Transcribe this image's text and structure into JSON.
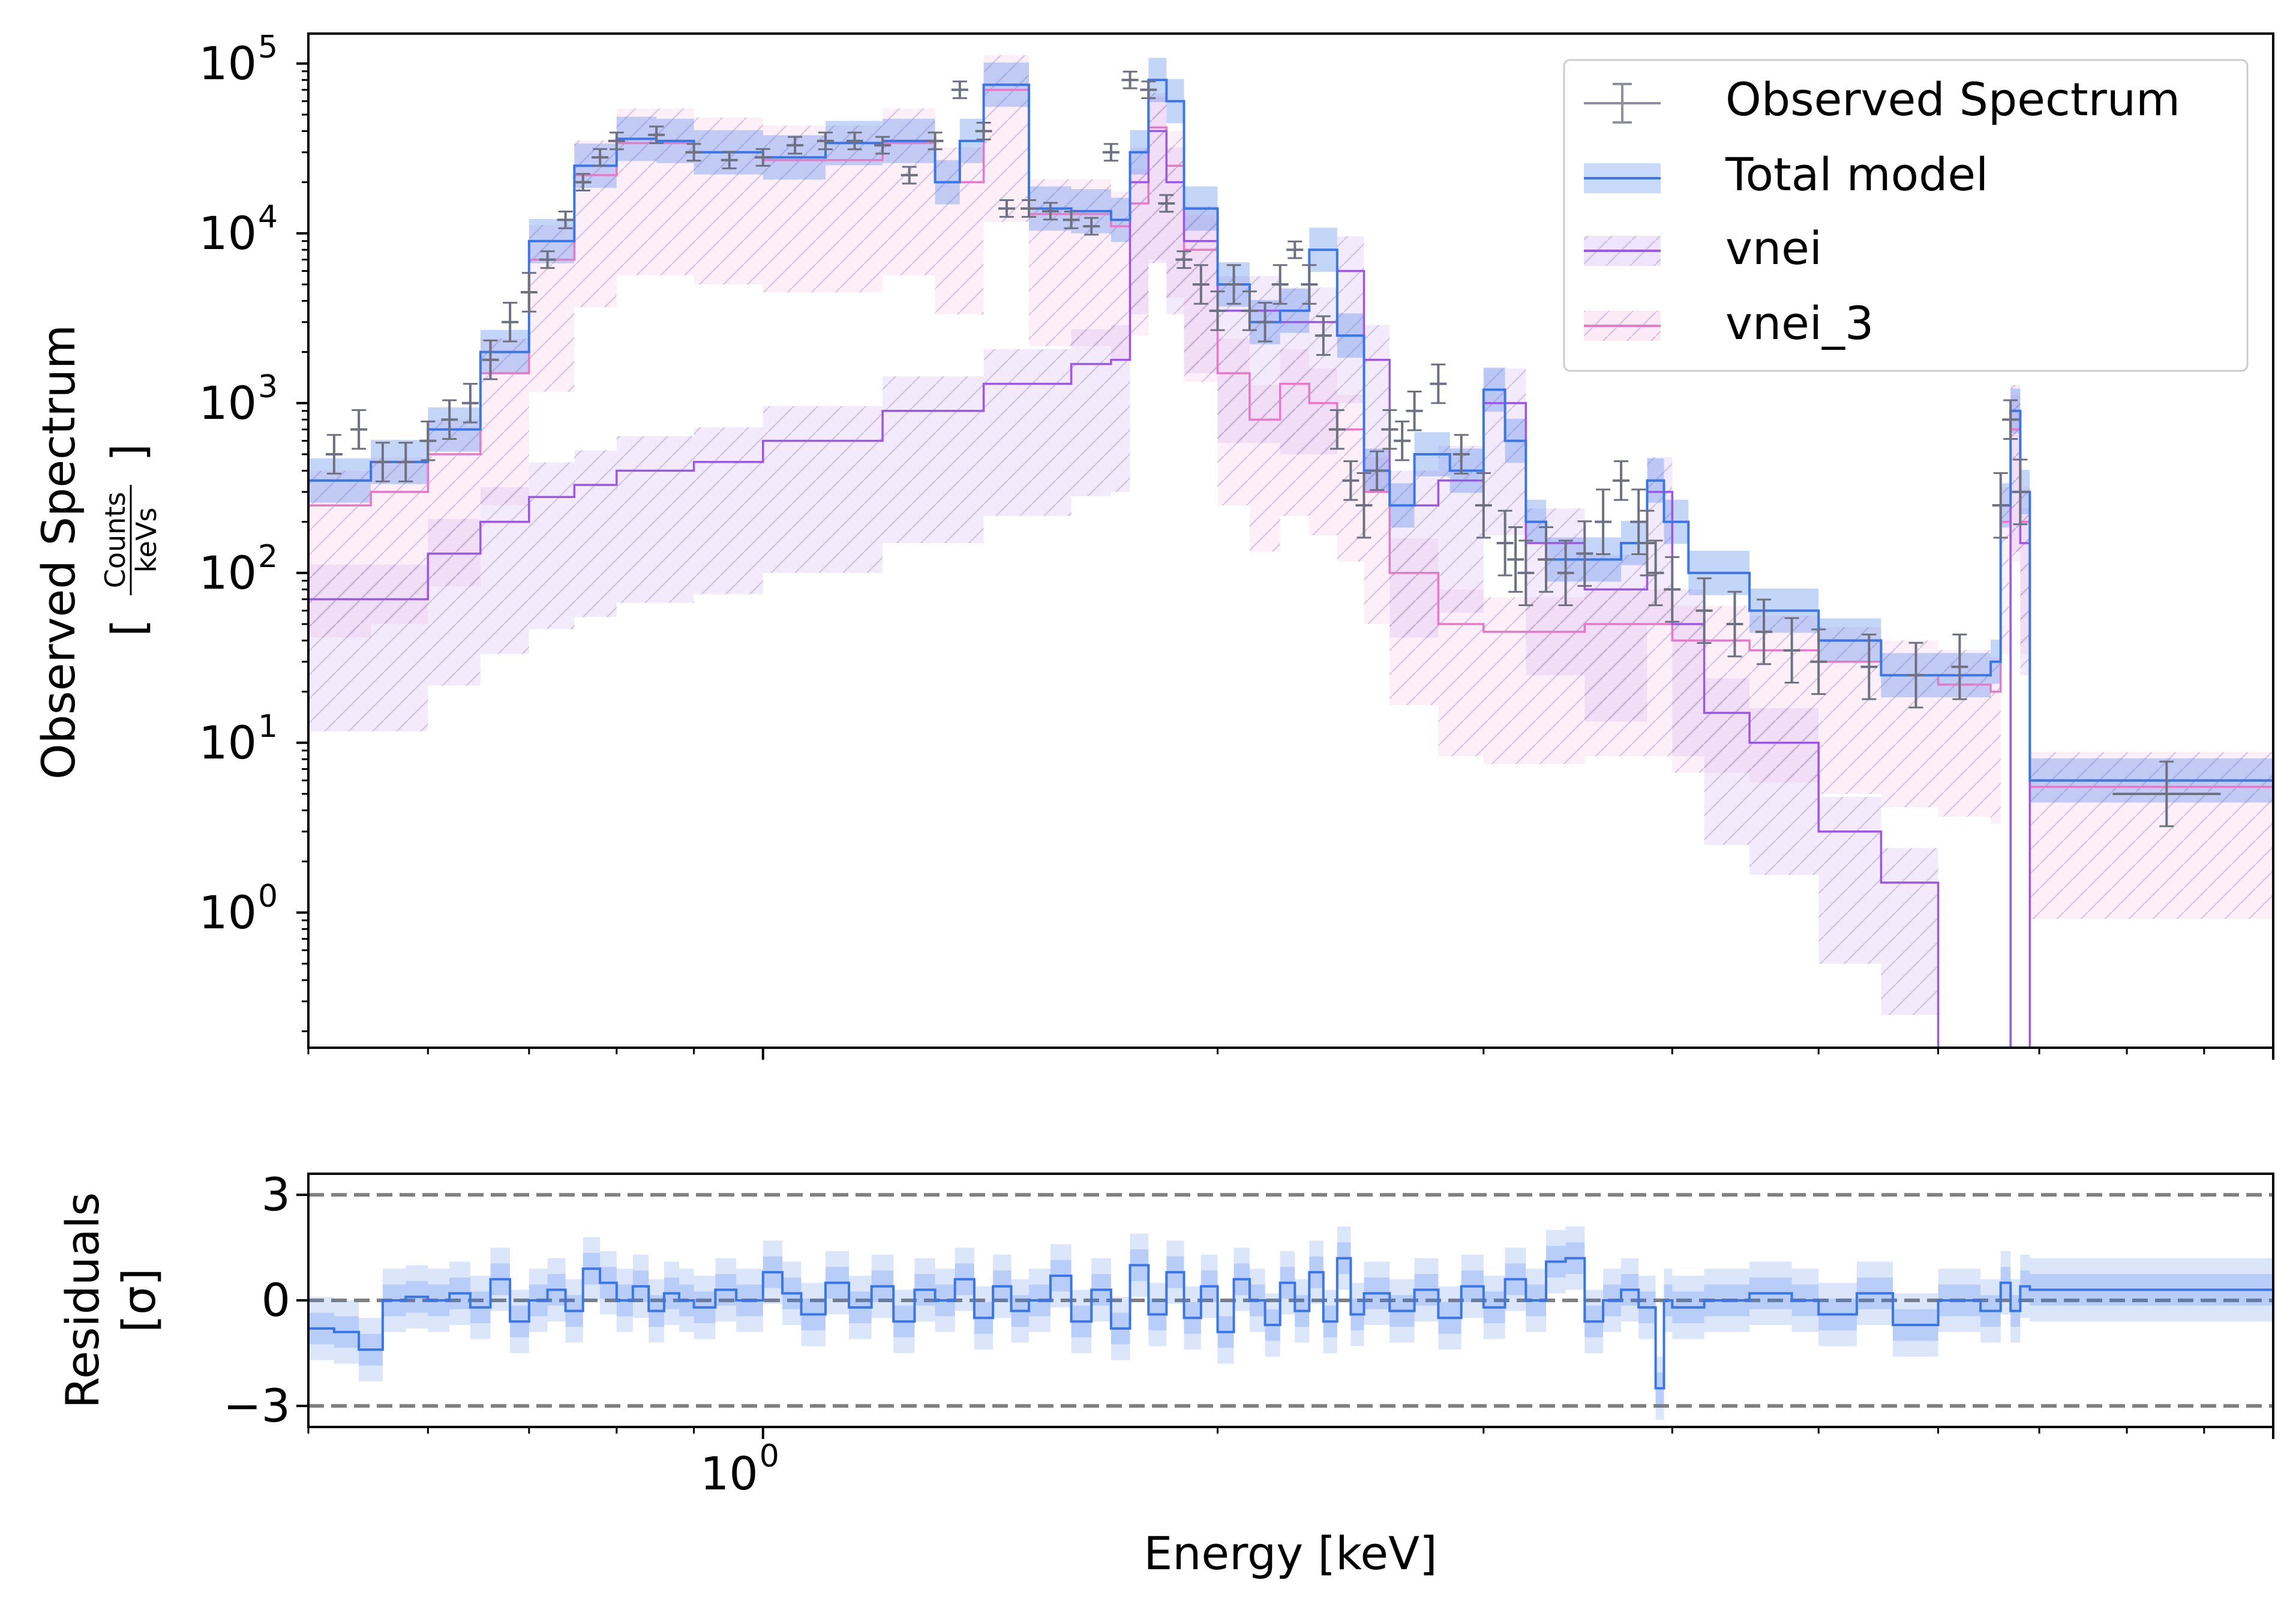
{
  "chart_data": [
    {
      "type": "line",
      "panel": "spectrum",
      "ylabel": "Observed Spectrum",
      "ylabel_units": {
        "open": "[",
        "numerator": "Counts",
        "denominator": "keVs",
        "close": "]"
      },
      "xscale": "log",
      "yscale": "log",
      "xlim": [
        0.5,
        10.0
      ],
      "ylim": [
        0.16,
        150000
      ],
      "yticks": [
        {
          "value": 1,
          "base": "10",
          "exp": "0"
        },
        {
          "value": 10,
          "base": "10",
          "exp": "1"
        },
        {
          "value": 100,
          "base": "10",
          "exp": "2"
        },
        {
          "value": 1000,
          "base": "10",
          "exp": "3"
        },
        {
          "value": 10000,
          "base": "10",
          "exp": "4"
        },
        {
          "value": 100000,
          "base": "10",
          "exp": "5"
        }
      ],
      "legend": {
        "placement": "top-right",
        "entries": [
          {
            "label": "Observed Spectrum",
            "kind": "errorbar",
            "color": "#6e7181"
          },
          {
            "label": "Total model",
            "kind": "line-band",
            "color": "#3a76e8"
          },
          {
            "label": "vnei",
            "kind": "line-band-hatch",
            "color": "#9b58e6"
          },
          {
            "label": "vnei_3",
            "kind": "line-band-hatch",
            "color": "#e67ac6"
          }
        ]
      },
      "series": [
        {
          "name": "Total model",
          "color": "#3a76e8",
          "x": [
            0.5,
            0.55,
            0.6,
            0.65,
            0.7,
            0.75,
            0.8,
            0.85,
            0.9,
            1.0,
            1.1,
            1.2,
            1.3,
            1.35,
            1.4,
            1.5,
            1.6,
            1.7,
            1.75,
            1.8,
            1.85,
            1.9,
            2.0,
            2.1,
            2.2,
            2.3,
            2.4,
            2.5,
            2.6,
            2.7,
            2.85,
            3.0,
            3.1,
            3.2,
            3.3,
            3.5,
            3.7,
            3.85,
            3.95,
            4.1,
            4.5,
            5.0,
            5.5,
            6.0,
            6.5,
            6.6,
            6.7,
            6.8,
            6.9,
            10.0
          ],
          "y": [
            350,
            450,
            700,
            2000,
            9000,
            25000,
            36000,
            35000,
            30000,
            28000,
            34000,
            35000,
            20000,
            35000,
            75000,
            14000,
            13500,
            12000,
            30000,
            80000,
            60000,
            14000,
            5000,
            3000,
            3500,
            8000,
            2500,
            400,
            250,
            500,
            400,
            1200,
            600,
            200,
            120,
            120,
            150,
            350,
            200,
            100,
            60,
            40,
            25,
            25,
            30,
            250,
            900,
            300,
            6,
            6
          ]
        },
        {
          "name": "vnei",
          "color": "#9b58e6",
          "x": [
            0.5,
            0.55,
            0.6,
            0.65,
            0.7,
            0.75,
            0.8,
            0.9,
            1.0,
            1.2,
            1.4,
            1.6,
            1.7,
            1.75,
            1.8,
            1.85,
            1.9,
            2.0,
            2.2,
            2.4,
            2.5,
            2.6,
            2.8,
            3.0,
            3.2,
            3.5,
            3.85,
            4.0,
            4.2,
            4.5,
            5.0,
            5.5,
            6.0,
            6.5,
            6.7,
            6.8,
            6.9,
            10.0
          ],
          "y": [
            70,
            70,
            130,
            200,
            280,
            330,
            400,
            450,
            600,
            900,
            1300,
            1700,
            1800,
            20000,
            40000,
            20000,
            9000,
            3500,
            3000,
            6000,
            1800,
            250,
            350,
            1000,
            150,
            80,
            300,
            50,
            15,
            10,
            3,
            1.5,
            0.1,
            0.1,
            800,
            150,
            0.1,
            0.1
          ]
        },
        {
          "name": "vnei_3",
          "color": "#e67ac6",
          "x": [
            0.5,
            0.55,
            0.6,
            0.65,
            0.7,
            0.75,
            0.8,
            0.9,
            1.0,
            1.2,
            1.3,
            1.4,
            1.5,
            1.6,
            1.7,
            1.75,
            1.8,
            1.85,
            1.9,
            2.0,
            2.1,
            2.2,
            2.3,
            2.4,
            2.5,
            2.6,
            2.8,
            3.0,
            3.5,
            4.0,
            4.5,
            5.0,
            5.5,
            6.0,
            6.5,
            6.6,
            6.7,
            6.8,
            6.9,
            10.0
          ],
          "y": [
            250,
            300,
            500,
            1500,
            7000,
            22000,
            34000,
            30000,
            27000,
            34000,
            20000,
            70000,
            13000,
            13000,
            11000,
            15000,
            42000,
            25000,
            8000,
            1500,
            800,
            1300,
            1000,
            700,
            300,
            100,
            50,
            45,
            50,
            40,
            35,
            30,
            25,
            22,
            20,
            200,
            700,
            200,
            5.5,
            5.5
          ]
        }
      ],
      "observed": {
        "name": "Observed Spectrum",
        "color": "#6e7181",
        "x": [
          0.52,
          0.54,
          0.56,
          0.58,
          0.6,
          0.62,
          0.64,
          0.66,
          0.68,
          0.7,
          0.72,
          0.74,
          0.76,
          0.78,
          0.8,
          0.85,
          0.9,
          0.95,
          1.0,
          1.05,
          1.1,
          1.15,
          1.2,
          1.25,
          1.3,
          1.35,
          1.4,
          1.45,
          1.5,
          1.55,
          1.6,
          1.65,
          1.7,
          1.75,
          1.8,
          1.85,
          1.9,
          1.95,
          2.0,
          2.05,
          2.1,
          2.15,
          2.2,
          2.25,
          2.3,
          2.35,
          2.4,
          2.45,
          2.5,
          2.55,
          2.6,
          2.65,
          2.7,
          2.8,
          2.9,
          3.0,
          3.1,
          3.15,
          3.2,
          3.3,
          3.4,
          3.5,
          3.6,
          3.7,
          3.8,
          3.85,
          3.9,
          4.0,
          4.2,
          4.4,
          4.6,
          4.8,
          5.0,
          5.4,
          5.8,
          6.2,
          6.6,
          6.7,
          6.8,
          8.5
        ],
        "y": [
          500,
          700,
          450,
          450,
          600,
          800,
          1000,
          1800,
          3000,
          4500,
          7000,
          12000,
          20000,
          28000,
          35000,
          38000,
          30000,
          27000,
          28000,
          33000,
          35000,
          35000,
          33000,
          22000,
          35000,
          70000,
          40000,
          14000,
          14000,
          13500,
          12000,
          11000,
          30000,
          80000,
          70000,
          15000,
          7000,
          5000,
          3500,
          5000,
          3500,
          3000,
          5000,
          8000,
          5000,
          2500,
          700,
          350,
          250,
          400,
          700,
          600,
          900,
          1300,
          500,
          250,
          150,
          120,
          100,
          120,
          100,
          130,
          200,
          350,
          200,
          150,
          100,
          80,
          60,
          50,
          45,
          35,
          30,
          28,
          25,
          28,
          250,
          800,
          300,
          5
        ]
      }
    },
    {
      "type": "line",
      "panel": "residuals",
      "xlabel": "Energy [keV]",
      "ylabel": "Residuals",
      "ylabel_units": "[σ]",
      "xscale": "log",
      "xlim": [
        0.5,
        10.0
      ],
      "ylim": [
        -3.6,
        3.6
      ],
      "yticks": [
        {
          "value": 3,
          "label": "3"
        },
        {
          "value": 0,
          "label": "0"
        },
        {
          "value": -3,
          "label": "−3"
        }
      ],
      "xticks": [
        {
          "value": 1,
          "base": "10",
          "exp": "0"
        }
      ],
      "reference_lines": [
        3,
        0,
        -3
      ],
      "series": [
        {
          "name": "Total model",
          "color": "#3a76e8",
          "x": [
            0.5,
            0.52,
            0.54,
            0.56,
            0.58,
            0.6,
            0.62,
            0.64,
            0.66,
            0.68,
            0.7,
            0.72,
            0.74,
            0.76,
            0.78,
            0.8,
            0.82,
            0.84,
            0.86,
            0.88,
            0.9,
            0.93,
            0.96,
            1.0,
            1.03,
            1.06,
            1.1,
            1.14,
            1.18,
            1.22,
            1.26,
            1.3,
            1.34,
            1.38,
            1.42,
            1.46,
            1.5,
            1.55,
            1.6,
            1.65,
            1.7,
            1.75,
            1.8,
            1.85,
            1.9,
            1.95,
            2.0,
            2.05,
            2.1,
            2.15,
            2.2,
            2.25,
            2.3,
            2.35,
            2.4,
            2.45,
            2.5,
            2.6,
            2.7,
            2.8,
            2.9,
            3.0,
            3.1,
            3.2,
            3.3,
            3.4,
            3.5,
            3.6,
            3.7,
            3.8,
            3.9,
            3.95,
            4.0,
            4.2,
            4.5,
            4.8,
            5.0,
            5.3,
            5.6,
            6.0,
            6.4,
            6.6,
            6.7,
            6.8,
            6.9,
            10.0
          ],
          "y": [
            -0.8,
            -0.9,
            -1.4,
            0.0,
            0.1,
            0.0,
            0.2,
            -0.2,
            0.6,
            -0.6,
            0.0,
            0.3,
            -0.3,
            0.9,
            0.5,
            0.0,
            0.4,
            -0.3,
            0.2,
            0.0,
            -0.2,
            0.3,
            0.0,
            0.8,
            0.2,
            -0.4,
            0.5,
            -0.2,
            0.4,
            -0.6,
            0.3,
            0.0,
            0.6,
            -0.5,
            0.4,
            -0.3,
            0.0,
            0.7,
            -0.6,
            0.3,
            -0.8,
            1.0,
            -0.4,
            0.8,
            -0.5,
            0.4,
            -0.9,
            0.6,
            0.0,
            -0.7,
            0.5,
            -0.3,
            0.8,
            -0.6,
            1.2,
            -0.4,
            0.2,
            -0.3,
            0.3,
            -0.5,
            0.4,
            -0.2,
            0.6,
            0.0,
            1.1,
            1.2,
            -0.6,
            0.0,
            0.3,
            -0.2,
            -2.5,
            0.0,
            -0.2,
            0.0,
            0.2,
            0.0,
            -0.4,
            0.2,
            -0.7,
            0.0,
            -0.3,
            0.5,
            -0.3,
            0.4,
            0.3,
            0.3
          ]
        }
      ]
    }
  ]
}
